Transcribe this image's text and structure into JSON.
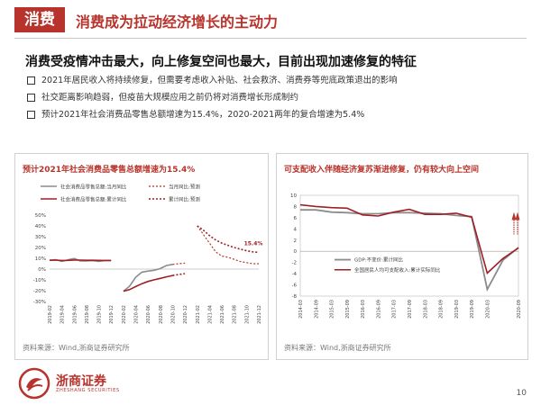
{
  "header": {
    "tag": "消费",
    "title": "消费成为拉动经济增长的主动力",
    "subtitle": "消费受疫情冲击最大，向上修复空间也最大，目前出现加速修复的特征"
  },
  "bullets": [
    "2021年居民收入将持续修复，但需要考虑收入补贴、社会救济、消费券等兜底政策退出的影响",
    "社交距离影响趋弱，但疫苗大规模应用之前仍将对消费增长形成制约",
    "预计2021年社会消费品零售总额增速为15.4%，2020-2021两年的复合增速为5.4%"
  ],
  "left_panel": {
    "title": "预计2021年社会消费品零售总额增速为15.4%",
    "legend": [
      "社会消费品零售总额:当月同比",
      "社会消费品零售总额:累计同比",
      "当月同比:预测",
      "累计同比:预测"
    ],
    "annotation": "15.4%",
    "source": "资料来源：Wind,浙商证券研究所"
  },
  "right_panel": {
    "title": "可支配收入伴随经济复苏渐进修复，仍有较大向上空间",
    "legend": [
      "GDP:不变价:累计同比",
      "全国居民人均可支配收入:累计实际同比"
    ],
    "source": "资料来源：Wind,浙商证券研究所"
  },
  "footer": {
    "brand": "浙商证券",
    "brand_en": "ZHESHANG SECURITIES",
    "page": "10"
  },
  "colors": {
    "accent": "#b8332b",
    "dark_red": "#a01f25",
    "gray": "#8c8c8c"
  },
  "chart_data": [
    {
      "type": "line",
      "x": [
        "2019-02",
        "2019-03",
        "2019-04",
        "2019-05",
        "2019-06",
        "2019-07",
        "2019-08",
        "2019-09",
        "2019-10",
        "2019-11",
        "2019-12",
        "2020-01",
        "2020-02",
        "2020-03",
        "2020-04",
        "2020-05",
        "2020-06",
        "2020-07",
        "2020-08",
        "2020-09",
        "2020-10",
        "2020-11",
        "2020-12",
        "2021-01",
        "2021-02",
        "2021-03",
        "2021-04",
        "2021-05",
        "2021-06",
        "2021-07",
        "2021-08",
        "2021-09",
        "2021-10",
        "2021-11",
        "2021-12"
      ],
      "x_ticks": [
        "2019-02",
        "2019-04",
        "2019-06",
        "2019-08",
        "2019-10",
        "2019-12",
        "2020-02",
        "2020-04",
        "2020-06",
        "2020-08",
        "2020-10",
        "2020-12",
        "2021-02",
        "2021-04",
        "2021-06",
        "2021-08",
        "2021-10",
        "2021-12"
      ],
      "series": [
        {
          "name": "社会消费品零售总额:当月同比",
          "values": [
            8.2,
            8.7,
            7.2,
            8.6,
            9.8,
            7.6,
            7.5,
            7.8,
            7.2,
            8.0,
            8.0,
            null,
            -20.5,
            -15.8,
            -7.5,
            -2.8,
            -1.8,
            -1.1,
            0.5,
            3.3,
            4.3,
            null,
            null,
            null,
            null,
            null,
            null,
            null,
            null,
            null,
            null,
            null,
            null,
            null,
            null
          ]
        },
        {
          "name": "社会消费品零售总额:累计同比",
          "values": [
            8.2,
            8.3,
            8.0,
            8.1,
            8.4,
            8.3,
            8.2,
            8.2,
            8.1,
            8.0,
            8.0,
            null,
            -20.5,
            -19.0,
            -16.2,
            -13.5,
            -11.4,
            -9.9,
            -8.6,
            -7.2,
            -5.9,
            null,
            null,
            null,
            null,
            null,
            null,
            null,
            null,
            null,
            null,
            null,
            null,
            null,
            null
          ]
        },
        {
          "name": "当月同比:预测",
          "values": [
            null,
            null,
            null,
            null,
            null,
            null,
            null,
            null,
            null,
            null,
            null,
            null,
            null,
            null,
            null,
            null,
            null,
            null,
            null,
            null,
            4.3,
            5.0,
            5.5,
            null,
            40.0,
            32.0,
            24.0,
            16.0,
            12.0,
            11.0,
            9.0,
            7.0,
            6.0,
            5.0,
            5.0
          ]
        },
        {
          "name": "累计同比:预测",
          "values": [
            null,
            null,
            null,
            null,
            null,
            null,
            null,
            null,
            null,
            null,
            null,
            null,
            null,
            null,
            null,
            null,
            null,
            null,
            null,
            null,
            -5.9,
            -5.0,
            -4.2,
            null,
            40.0,
            36.0,
            31.0,
            27.0,
            24.0,
            22.0,
            20.0,
            18.5,
            17.0,
            16.0,
            15.4
          ]
        }
      ],
      "ylim": [
        -30,
        50
      ],
      "yticks": [
        "-30%",
        "-20%",
        "-10%",
        "0%",
        "10%",
        "20%",
        "30%",
        "40%",
        "50%"
      ],
      "annotations": [
        "15.4%"
      ]
    },
    {
      "type": "line",
      "x": [
        "2014-03",
        "2014-09",
        "2015-03",
        "2015-09",
        "2016-03",
        "2016-09",
        "2017-03",
        "2017-09",
        "2018-03",
        "2018-09",
        "2019-03",
        "2019-09",
        "2020-03",
        "2020-06",
        "2020-09"
      ],
      "x_ticks": [
        "2014-03",
        "2014-09",
        "2015-03",
        "2015-09",
        "2016-03",
        "2016-09",
        "2017-03",
        "2017-09",
        "2018-03",
        "2018-09",
        "2019-03",
        "2019-09",
        "2020-03",
        "2020-09"
      ],
      "series": [
        {
          "name": "GDP:不变价:累计同比",
          "values": [
            7.4,
            7.4,
            7.0,
            6.9,
            6.7,
            6.7,
            6.9,
            6.9,
            6.8,
            6.7,
            6.4,
            6.2,
            -6.8,
            -1.6,
            0.7
          ]
        },
        {
          "name": "全国居民人均可支配收入:累计实际同比",
          "values": [
            8.3,
            8.0,
            7.8,
            7.7,
            6.5,
            6.3,
            7.0,
            7.5,
            6.6,
            6.6,
            6.8,
            6.1,
            -3.9,
            -1.3,
            0.6
          ]
        }
      ],
      "ylim": [
        -8,
        10
      ],
      "yticks": [
        "-8",
        "-6",
        "-4",
        "-2",
        "0",
        "2",
        "4",
        "6",
        "8",
        "10"
      ]
    }
  ]
}
